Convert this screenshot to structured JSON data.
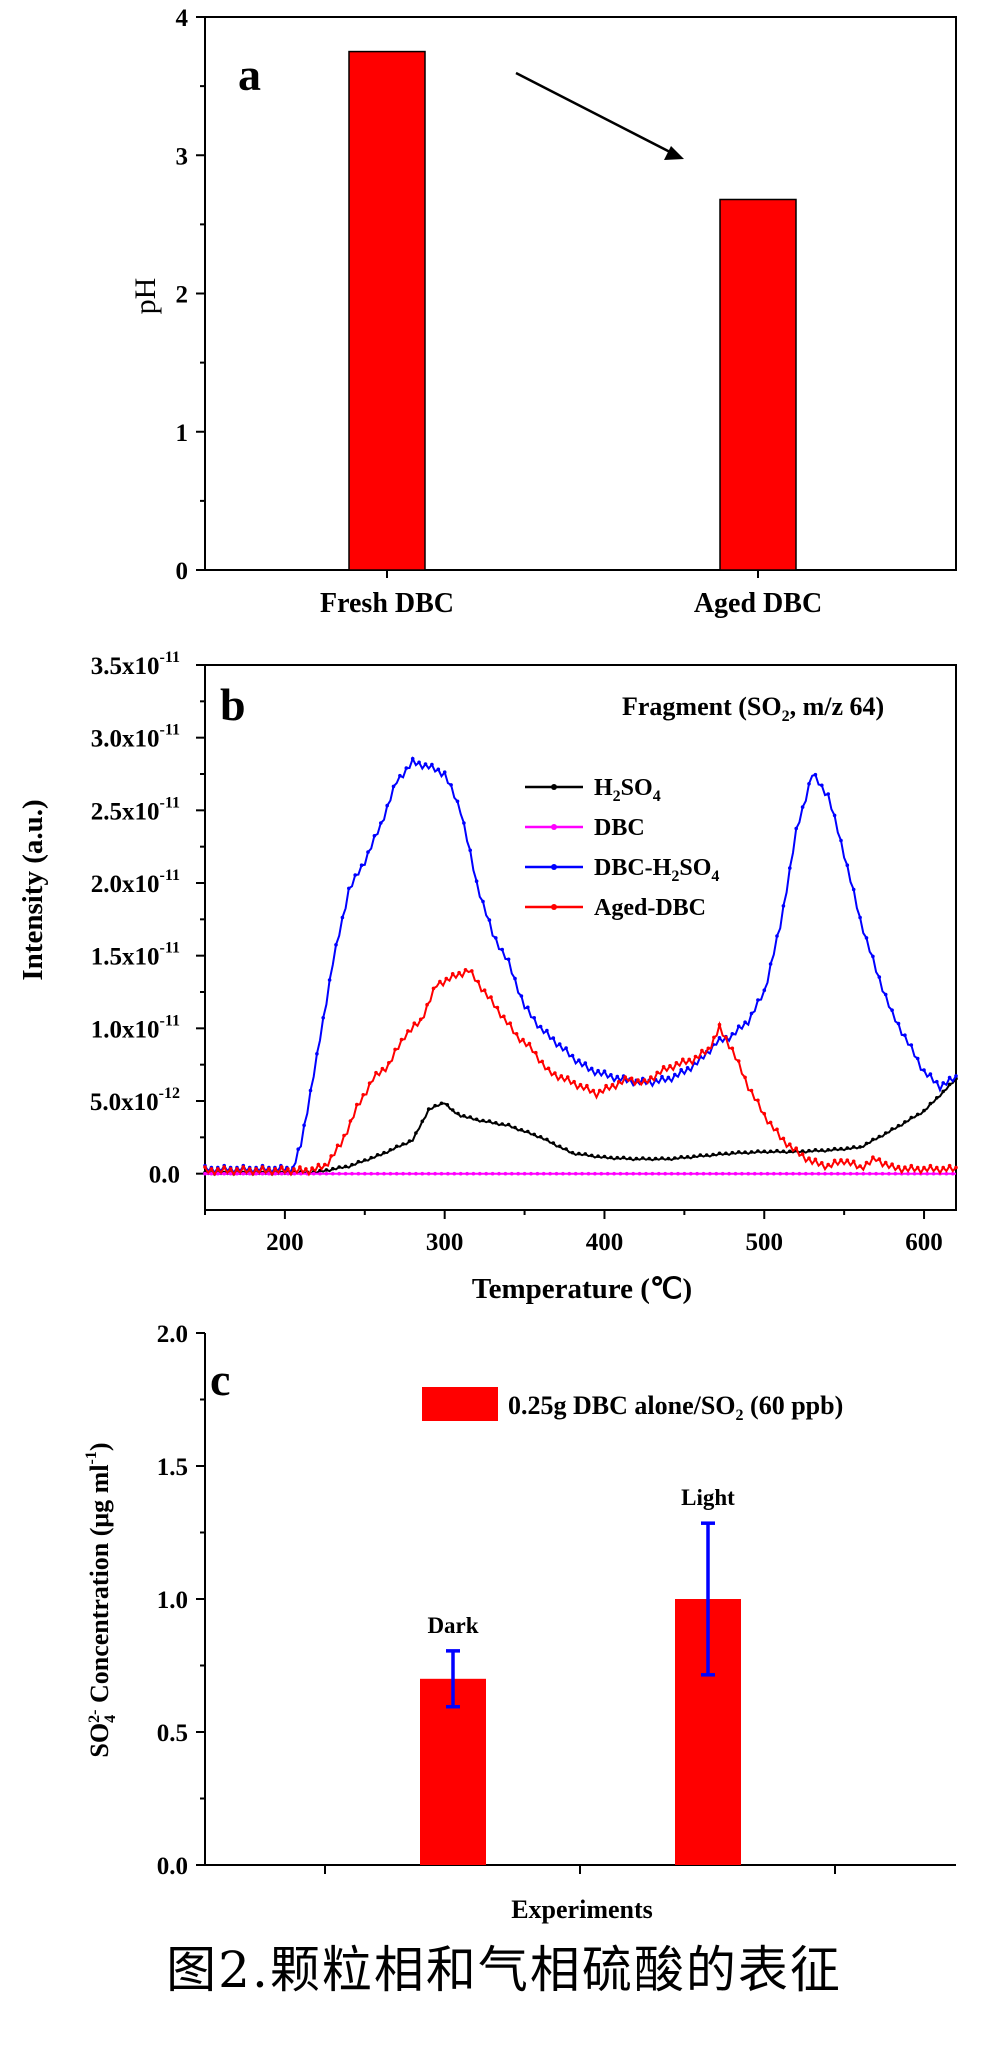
{
  "chart_data": [
    {
      "type": "bar",
      "panel_label": "a",
      "categories": [
        "Fresh DBC",
        "Aged DBC"
      ],
      "values": [
        3.75,
        2.68
      ],
      "ylabel": "pH",
      "xlabel": "",
      "ylim": [
        0,
        4
      ],
      "yticks": [
        "0",
        "1",
        "2",
        "3",
        "4"
      ],
      "bar_color": "#ff0000",
      "annotation": "arrow indicating decrease from Fresh DBC to Aged DBC"
    },
    {
      "type": "line",
      "panel_label": "b",
      "title": "Fragment (SO2, m/z 64)",
      "title_main": "Fragment (SO",
      "title_sub": "2",
      "title_tail": ", m/z 64)",
      "xlabel": "Temperature (℃)",
      "ylabel": "Intensity (a.u.)",
      "xlim": [
        150,
        620
      ],
      "ylim": [
        -2.5e-12,
        3.5e-11
      ],
      "xticks": [
        "200",
        "300",
        "400",
        "500",
        "600"
      ],
      "yticks": [
        {
          "mantissa": "0.0",
          "exp": ""
        },
        {
          "mantissa": "5.0x10",
          "exp": "-12"
        },
        {
          "mantissa": "1.0x10",
          "exp": "-11"
        },
        {
          "mantissa": "1.5x10",
          "exp": "-11"
        },
        {
          "mantissa": "2.0x10",
          "exp": "-11"
        },
        {
          "mantissa": "2.5x10",
          "exp": "-11"
        },
        {
          "mantissa": "3.0x10",
          "exp": "-11"
        },
        {
          "mantissa": "3.5x10",
          "exp": "-11"
        }
      ],
      "legend": [
        {
          "name": "H2SO4",
          "main": "H",
          "sub1": "2",
          "mid": "SO",
          "sub2": "4",
          "tail": "",
          "color": "#000000"
        },
        {
          "name": "DBC",
          "main": "DBC",
          "sub1": "",
          "mid": "",
          "sub2": "",
          "tail": "",
          "color": "#ff00ff"
        },
        {
          "name": "DBC-H2SO4",
          "main": "DBC-H",
          "sub1": "2",
          "mid": "SO",
          "sub2": "4",
          "tail": "",
          "color": "#0000ff"
        },
        {
          "name": "Aged-DBC",
          "main": "Aged-DBC",
          "sub1": "",
          "mid": "",
          "sub2": "",
          "tail": "",
          "color": "#ff0000"
        }
      ],
      "series": [
        {
          "name": "H2SO4",
          "color": "#000000",
          "x": [
            150,
            200,
            220,
            240,
            260,
            280,
            290,
            300,
            305,
            310,
            320,
            340,
            360,
            380,
            400,
            420,
            440,
            460,
            480,
            500,
            520,
            540,
            560,
            580,
            600,
            620
          ],
          "values": [
            0,
            0,
            1e-13,
            5e-13,
            1.3e-12,
            2.3e-12,
            4.4e-12,
            4.9e-12,
            4.3e-12,
            4e-12,
            3.7e-12,
            3.3e-12,
            2.5e-12,
            1.4e-12,
            1.1e-12,
            1e-12,
            1e-12,
            1.2e-12,
            1.4e-12,
            1.5e-12,
            1.5e-12,
            1.6e-12,
            1.8e-12,
            3e-12,
            4.3e-12,
            6.5e-12
          ]
        },
        {
          "name": "DBC",
          "color": "#ff00ff",
          "x": [
            150,
            620
          ],
          "values": [
            0,
            0
          ]
        },
        {
          "name": "DBC-H2SO4",
          "color": "#0000ff",
          "x": [
            150,
            170,
            190,
            205,
            210,
            220,
            230,
            240,
            250,
            260,
            270,
            280,
            290,
            300,
            310,
            320,
            330,
            340,
            350,
            360,
            370,
            380,
            390,
            400,
            410,
            420,
            430,
            440,
            450,
            460,
            470,
            480,
            490,
            500,
            510,
            520,
            530,
            540,
            550,
            560,
            570,
            580,
            590,
            600,
            610,
            620
          ],
          "values": [
            3e-13,
            3e-13,
            3e-13,
            3e-13,
            2e-12,
            8e-12,
            1.45e-11,
            1.95e-11,
            2.15e-11,
            2.4e-11,
            2.7e-11,
            2.83e-11,
            2.8e-11,
            2.75e-11,
            2.5e-11,
            2e-11,
            1.65e-11,
            1.45e-11,
            1.15e-11,
            1e-11,
            9e-12,
            8e-12,
            7.2e-12,
            6.8e-12,
            6.5e-12,
            6.3e-12,
            6.3e-12,
            6.5e-12,
            7e-12,
            7.8e-12,
            9e-12,
            9.5e-12,
            1.05e-11,
            1.25e-11,
            1.7e-11,
            2.35e-11,
            2.75e-11,
            2.6e-11,
            2.2e-11,
            1.75e-11,
            1.4e-11,
            1.1e-11,
            9e-12,
            7e-12,
            6e-12,
            6.6e-12
          ]
        },
        {
          "name": "Aged-DBC",
          "color": "#ff0000",
          "x": [
            150,
            200,
            215,
            225,
            235,
            245,
            255,
            265,
            275,
            285,
            295,
            305,
            315,
            325,
            335,
            345,
            355,
            365,
            375,
            385,
            395,
            405,
            415,
            425,
            435,
            445,
            455,
            465,
            472,
            480,
            490,
            500,
            510,
            520,
            530,
            540,
            550,
            560,
            570,
            580,
            590,
            600,
            620
          ],
          "values": [
            2e-13,
            2e-13,
            2e-13,
            5e-13,
            2e-12,
            4.5e-12,
            6.5e-12,
            7.5e-12,
            9.5e-12,
            1.05e-11,
            1.3e-11,
            1.35e-11,
            1.4e-11,
            1.25e-11,
            1.1e-11,
            9.5e-12,
            8.5e-12,
            7e-12,
            6.5e-12,
            6e-12,
            5.5e-12,
            6e-12,
            6.5e-12,
            6.2e-12,
            7e-12,
            7.5e-12,
            7.8e-12,
            8.5e-12,
            1e-11,
            8.5e-12,
            6e-12,
            4e-12,
            2.5e-12,
            1.5e-12,
            8e-13,
            5e-13,
            9e-13,
            4e-13,
            1e-12,
            4e-13,
            3e-13,
            3e-13,
            3e-13
          ]
        }
      ]
    },
    {
      "type": "bar",
      "panel_label": "c",
      "categories": [
        "Dark",
        "Light"
      ],
      "values": [
        0.7,
        1.0
      ],
      "errors": [
        0.105,
        0.285
      ],
      "xlabel": "Experiments",
      "ylabel": "SO4 2- Concentration (μg ml-1)",
      "ylabel_main": "SO",
      "ylabel_sub": "4",
      "ylabel_sup": "2-",
      "ylabel_mid": " Concentration (μg ml",
      "ylabel_sup2": "-1",
      "ylabel_tail": ")",
      "ylim": [
        0.0,
        2.0
      ],
      "yticks": [
        "0.0",
        "0.5",
        "1.0",
        "1.5",
        "2.0"
      ],
      "legend": {
        "main": "0.25g DBC alone/SO",
        "sub": "2",
        "tail": " (60 ppb)"
      },
      "bar_color": "#ff0000",
      "error_color": "#0000ff"
    }
  ],
  "caption": "图2.颗粒相和气相硫酸的表征"
}
